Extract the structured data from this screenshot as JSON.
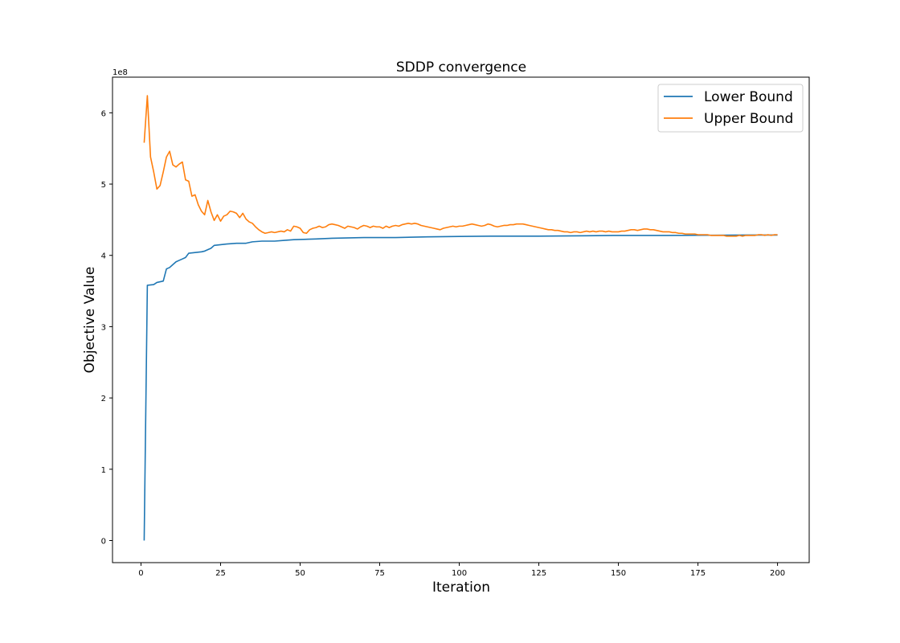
{
  "chart_data": {
    "type": "line",
    "title": "SDDP convergence",
    "xlabel": "Iteration",
    "ylabel": "Objective Value",
    "y_offset_label": "1e8",
    "xlim": [
      -8.95,
      209.95
    ],
    "ylim": [
      -0.31,
      6.5
    ],
    "x_ticks": [
      0,
      25,
      50,
      75,
      100,
      125,
      150,
      175,
      200
    ],
    "y_ticks": [
      0,
      1,
      2,
      3,
      4,
      5,
      6
    ],
    "grid": false,
    "legend": {
      "position": "top-right"
    },
    "series": [
      {
        "name": "Lower Bound",
        "color": "#1f77b4",
        "points": [
          [
            1,
            0.0
          ],
          [
            2,
            3.58
          ],
          [
            4,
            3.59
          ],
          [
            5,
            3.62
          ],
          [
            7,
            3.64
          ],
          [
            8,
            3.81
          ],
          [
            9,
            3.83
          ],
          [
            10,
            3.87
          ],
          [
            11,
            3.91
          ],
          [
            12,
            3.93
          ],
          [
            13,
            3.95
          ],
          [
            14,
            3.97
          ],
          [
            15,
            4.03
          ],
          [
            17,
            4.04
          ],
          [
            19,
            4.05
          ],
          [
            20,
            4.06
          ],
          [
            21,
            4.08
          ],
          [
            22,
            4.1
          ],
          [
            23,
            4.14
          ],
          [
            25,
            4.15
          ],
          [
            27,
            4.16
          ],
          [
            30,
            4.17
          ],
          [
            33,
            4.17
          ],
          [
            35,
            4.19
          ],
          [
            38,
            4.2
          ],
          [
            42,
            4.2
          ],
          [
            45,
            4.21
          ],
          [
            48,
            4.22
          ],
          [
            55,
            4.23
          ],
          [
            60,
            4.24
          ],
          [
            70,
            4.25
          ],
          [
            80,
            4.25
          ],
          [
            90,
            4.26
          ],
          [
            100,
            4.265
          ],
          [
            110,
            4.27
          ],
          [
            125,
            4.27
          ],
          [
            140,
            4.275
          ],
          [
            150,
            4.28
          ],
          [
            165,
            4.28
          ],
          [
            180,
            4.283
          ],
          [
            190,
            4.285
          ],
          [
            200,
            4.285
          ]
        ]
      },
      {
        "name": "Upper Bound",
        "color": "#ff7f0e",
        "points": [
          [
            1,
            5.58
          ],
          [
            2,
            6.24
          ],
          [
            3,
            5.38
          ],
          [
            4,
            5.17
          ],
          [
            5,
            4.93
          ],
          [
            6,
            4.98
          ],
          [
            7,
            5.17
          ],
          [
            8,
            5.38
          ],
          [
            9,
            5.46
          ],
          [
            10,
            5.27
          ],
          [
            11,
            5.24
          ],
          [
            12,
            5.28
          ],
          [
            13,
            5.31
          ],
          [
            14,
            5.06
          ],
          [
            15,
            5.04
          ],
          [
            16,
            4.83
          ],
          [
            17,
            4.85
          ],
          [
            18,
            4.71
          ],
          [
            19,
            4.62
          ],
          [
            20,
            4.57
          ],
          [
            21,
            4.77
          ],
          [
            22,
            4.61
          ],
          [
            23,
            4.49
          ],
          [
            24,
            4.57
          ],
          [
            25,
            4.48
          ],
          [
            26,
            4.55
          ],
          [
            27,
            4.57
          ],
          [
            28,
            4.62
          ],
          [
            29,
            4.61
          ],
          [
            30,
            4.59
          ],
          [
            31,
            4.53
          ],
          [
            32,
            4.59
          ],
          [
            33,
            4.51
          ],
          [
            34,
            4.47
          ],
          [
            35,
            4.45
          ],
          [
            36,
            4.4
          ],
          [
            37,
            4.36
          ],
          [
            38,
            4.33
          ],
          [
            39,
            4.31
          ],
          [
            40,
            4.32
          ],
          [
            41,
            4.33
          ],
          [
            42,
            4.32
          ],
          [
            43,
            4.33
          ],
          [
            44,
            4.34
          ],
          [
            45,
            4.33
          ],
          [
            46,
            4.36
          ],
          [
            47,
            4.34
          ],
          [
            48,
            4.41
          ],
          [
            49,
            4.4
          ],
          [
            50,
            4.38
          ],
          [
            51,
            4.32
          ],
          [
            52,
            4.31
          ],
          [
            53,
            4.36
          ],
          [
            54,
            4.38
          ],
          [
            55,
            4.39
          ],
          [
            56,
            4.41
          ],
          [
            57,
            4.39
          ],
          [
            58,
            4.4
          ],
          [
            59,
            4.43
          ],
          [
            60,
            4.44
          ],
          [
            61,
            4.43
          ],
          [
            62,
            4.42
          ],
          [
            63,
            4.4
          ],
          [
            64,
            4.38
          ],
          [
            65,
            4.41
          ],
          [
            66,
            4.4
          ],
          [
            67,
            4.39
          ],
          [
            68,
            4.37
          ],
          [
            69,
            4.4
          ],
          [
            70,
            4.42
          ],
          [
            71,
            4.41
          ],
          [
            72,
            4.39
          ],
          [
            73,
            4.41
          ],
          [
            74,
            4.4
          ],
          [
            75,
            4.4
          ],
          [
            76,
            4.38
          ],
          [
            77,
            4.41
          ],
          [
            78,
            4.39
          ],
          [
            79,
            4.41
          ],
          [
            80,
            4.42
          ],
          [
            81,
            4.41
          ],
          [
            82,
            4.43
          ],
          [
            83,
            4.44
          ],
          [
            84,
            4.45
          ],
          [
            85,
            4.44
          ],
          [
            86,
            4.45
          ],
          [
            87,
            4.44
          ],
          [
            88,
            4.42
          ],
          [
            89,
            4.41
          ],
          [
            90,
            4.4
          ],
          [
            91,
            4.39
          ],
          [
            92,
            4.38
          ],
          [
            93,
            4.37
          ],
          [
            94,
            4.36
          ],
          [
            95,
            4.38
          ],
          [
            96,
            4.39
          ],
          [
            97,
            4.4
          ],
          [
            98,
            4.41
          ],
          [
            99,
            4.4
          ],
          [
            100,
            4.41
          ],
          [
            101,
            4.41
          ],
          [
            102,
            4.42
          ],
          [
            103,
            4.43
          ],
          [
            104,
            4.44
          ],
          [
            105,
            4.43
          ],
          [
            106,
            4.42
          ],
          [
            107,
            4.41
          ],
          [
            108,
            4.42
          ],
          [
            109,
            4.44
          ],
          [
            110,
            4.43
          ],
          [
            111,
            4.41
          ],
          [
            112,
            4.4
          ],
          [
            113,
            4.41
          ],
          [
            114,
            4.42
          ],
          [
            115,
            4.42
          ],
          [
            116,
            4.43
          ],
          [
            117,
            4.43
          ],
          [
            118,
            4.44
          ],
          [
            119,
            4.44
          ],
          [
            120,
            4.44
          ],
          [
            121,
            4.43
          ],
          [
            122,
            4.42
          ],
          [
            123,
            4.41
          ],
          [
            124,
            4.4
          ],
          [
            125,
            4.39
          ],
          [
            126,
            4.38
          ],
          [
            127,
            4.37
          ],
          [
            128,
            4.36
          ],
          [
            129,
            4.36
          ],
          [
            130,
            4.35
          ],
          [
            131,
            4.35
          ],
          [
            132,
            4.34
          ],
          [
            133,
            4.33
          ],
          [
            134,
            4.33
          ],
          [
            135,
            4.32
          ],
          [
            136,
            4.33
          ],
          [
            137,
            4.33
          ],
          [
            138,
            4.32
          ],
          [
            139,
            4.33
          ],
          [
            140,
            4.34
          ],
          [
            141,
            4.33
          ],
          [
            142,
            4.34
          ],
          [
            143,
            4.33
          ],
          [
            144,
            4.34
          ],
          [
            145,
            4.34
          ],
          [
            146,
            4.33
          ],
          [
            147,
            4.34
          ],
          [
            148,
            4.33
          ],
          [
            149,
            4.33
          ],
          [
            150,
            4.33
          ],
          [
            151,
            4.34
          ],
          [
            152,
            4.34
          ],
          [
            153,
            4.35
          ],
          [
            154,
            4.36
          ],
          [
            155,
            4.36
          ],
          [
            156,
            4.35
          ],
          [
            157,
            4.36
          ],
          [
            158,
            4.37
          ],
          [
            159,
            4.37
          ],
          [
            160,
            4.36
          ],
          [
            161,
            4.36
          ],
          [
            162,
            4.35
          ],
          [
            163,
            4.34
          ],
          [
            164,
            4.33
          ],
          [
            165,
            4.33
          ],
          [
            166,
            4.33
          ],
          [
            167,
            4.32
          ],
          [
            168,
            4.32
          ],
          [
            169,
            4.31
          ],
          [
            170,
            4.31
          ],
          [
            171,
            4.3
          ],
          [
            172,
            4.3
          ],
          [
            173,
            4.3
          ],
          [
            174,
            4.3
          ],
          [
            175,
            4.29
          ],
          [
            176,
            4.29
          ],
          [
            177,
            4.29
          ],
          [
            178,
            4.29
          ],
          [
            179,
            4.28
          ],
          [
            180,
            4.28
          ],
          [
            181,
            4.28
          ],
          [
            182,
            4.28
          ],
          [
            183,
            4.28
          ],
          [
            184,
            4.27
          ],
          [
            185,
            4.27
          ],
          [
            186,
            4.27
          ],
          [
            187,
            4.27
          ],
          [
            188,
            4.28
          ],
          [
            189,
            4.27
          ],
          [
            190,
            4.28
          ],
          [
            191,
            4.28
          ],
          [
            192,
            4.28
          ],
          [
            193,
            4.28
          ],
          [
            194,
            4.29
          ],
          [
            195,
            4.29
          ],
          [
            196,
            4.28
          ],
          [
            197,
            4.29
          ],
          [
            198,
            4.28
          ],
          [
            199,
            4.29
          ],
          [
            200,
            4.29
          ]
        ]
      }
    ]
  }
}
